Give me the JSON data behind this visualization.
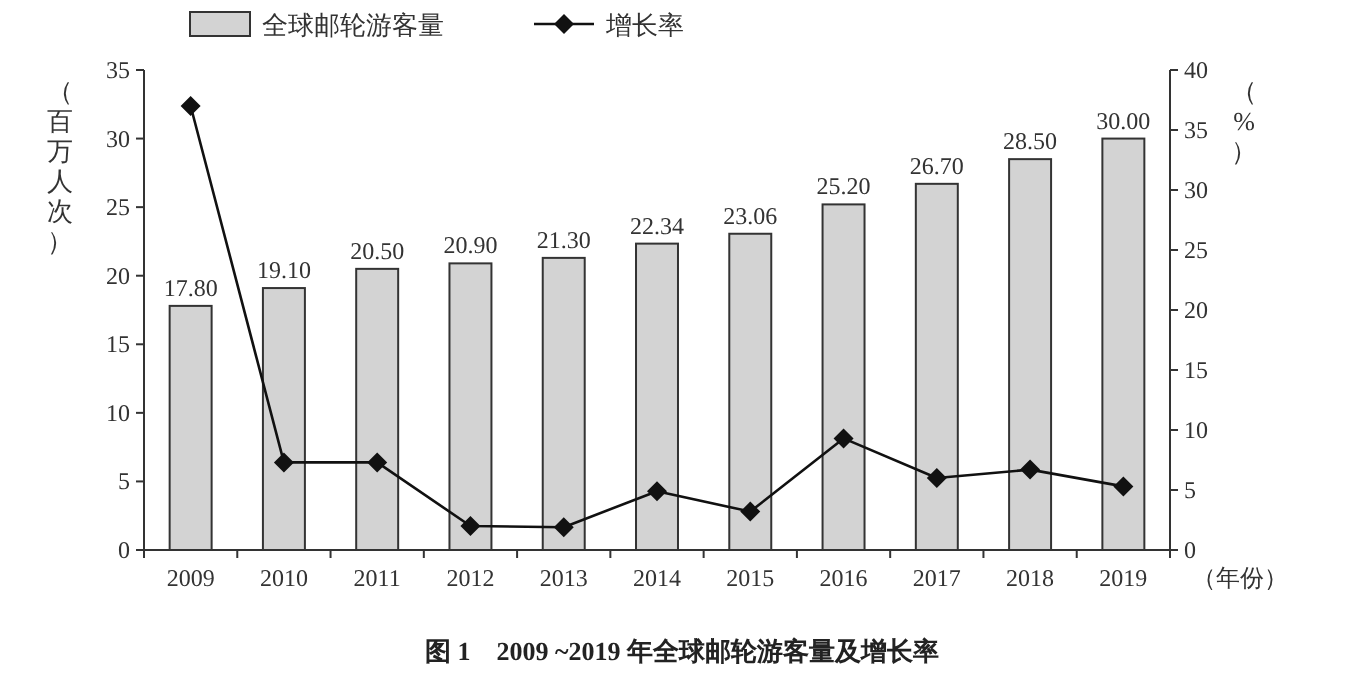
{
  "chart_data": {
    "type": "bar",
    "title": "图 1　2009 ~2019 年全球邮轮游客量及增长率",
    "xlabel": "（年份）",
    "ylabel": "（百万人次）",
    "y2label": "（%）",
    "categories": [
      "2009",
      "2010",
      "2011",
      "2012",
      "2013",
      "2014",
      "2015",
      "2016",
      "2017",
      "2018",
      "2019"
    ],
    "series": [
      {
        "name": "全球邮轮游客量",
        "color": "#d3d3d3",
        "values": [
          17.8,
          19.1,
          20.5,
          20.9,
          21.3,
          22.34,
          23.06,
          25.2,
          26.7,
          28.5,
          30.0
        ],
        "value_labels": [
          "17.80",
          "19.10",
          "20.50",
          "20.90",
          "21.30",
          "22.34",
          "23.06",
          "25.20",
          "26.70",
          "28.50",
          "30.00"
        ]
      },
      {
        "name": "增长率",
        "type": "line",
        "axis": "y2",
        "color": "#111111",
        "marker": "diamond",
        "values": [
          37,
          7.3,
          7.3,
          2.0,
          1.9,
          4.9,
          3.2,
          9.3,
          6.0,
          6.7,
          5.3
        ]
      }
    ],
    "ylim": [
      0,
      35
    ],
    "yticks": [
      0,
      5,
      10,
      15,
      20,
      25,
      30,
      35
    ],
    "y2lim": [
      0,
      40
    ],
    "y2ticks": [
      0,
      5,
      10,
      15,
      20,
      25,
      30,
      35,
      40
    ],
    "legend": "top",
    "grid": false
  }
}
